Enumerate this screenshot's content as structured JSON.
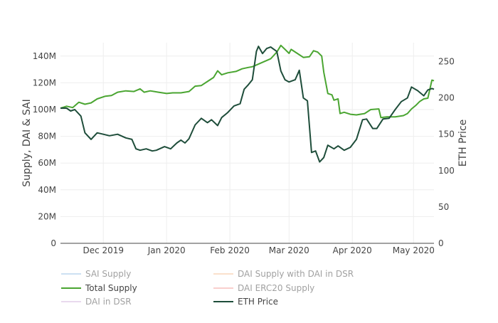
{
  "chart_data": {
    "type": "line",
    "x_axis": {
      "ticks": [
        "Dec 2019",
        "Jan 2020",
        "Feb 2020",
        "Mar 2020",
        "Apr 2020",
        "May 2020"
      ],
      "tick_dates": [
        "2019-12-01",
        "2020-01-01",
        "2020-02-01",
        "2020-03-01",
        "2020-04-01",
        "2020-05-01"
      ],
      "range": [
        "2019-11-10",
        "2020-05-11"
      ]
    },
    "y_axis_left": {
      "label": "Supply, DAI & SAI",
      "ticks": [
        "0",
        "20M",
        "40M",
        "60M",
        "80M",
        "100M",
        "120M",
        "140M"
      ],
      "tick_values": [
        0,
        20000000,
        40000000,
        60000000,
        80000000,
        100000000,
        120000000,
        140000000
      ],
      "range": [
        0,
        150000000
      ]
    },
    "y_axis_right": {
      "label": "ETH Price",
      "ticks": [
        "0",
        "50",
        "100",
        "150",
        "200",
        "250"
      ],
      "tick_values": [
        0,
        50,
        100,
        150,
        200,
        250
      ],
      "range": [
        0,
        276
      ]
    },
    "grid": true,
    "legend": {
      "placement": "bottom",
      "entries": [
        {
          "name": "SAI Supply",
          "color": "#9dc3e6",
          "visible": false
        },
        {
          "name": "DAI Supply with DAI in DSR",
          "color": "#f6c49a",
          "visible": false
        },
        {
          "name": "Total Supply",
          "color": "#4aa531",
          "visible": true
        },
        {
          "name": "DAI ERC20 Supply",
          "color": "#f4a09c",
          "visible": false
        },
        {
          "name": "DAI in DSR",
          "color": "#d4b5de",
          "visible": false
        },
        {
          "name": "ETH Price",
          "color": "#1e4d3a",
          "visible": true
        }
      ]
    },
    "series": [
      {
        "name": "Total Supply",
        "axis": "left",
        "color": "#4aa531",
        "points": [
          [
            "2019-11-10",
            101000000
          ],
          [
            "2019-11-13",
            102500000
          ],
          [
            "2019-11-16",
            101500000
          ],
          [
            "2019-11-19",
            105500000
          ],
          [
            "2019-11-22",
            104000000
          ],
          [
            "2019-11-25",
            105000000
          ],
          [
            "2019-11-28",
            108000000
          ],
          [
            "2019-12-02",
            110000000
          ],
          [
            "2019-12-05",
            110500000
          ],
          [
            "2019-12-08",
            113000000
          ],
          [
            "2019-12-12",
            114000000
          ],
          [
            "2019-12-16",
            113500000
          ],
          [
            "2019-12-19",
            115500000
          ],
          [
            "2019-12-21",
            113000000
          ],
          [
            "2019-12-24",
            114000000
          ],
          [
            "2019-12-28",
            113000000
          ],
          [
            "2020-01-01",
            112000000
          ],
          [
            "2020-01-04",
            112500000
          ],
          [
            "2020-01-08",
            112500000
          ],
          [
            "2020-01-12",
            113500000
          ],
          [
            "2020-01-15",
            117500000
          ],
          [
            "2020-01-18",
            118000000
          ],
          [
            "2020-01-21",
            121000000
          ],
          [
            "2020-01-24",
            124000000
          ],
          [
            "2020-01-26",
            129000000
          ],
          [
            "2020-01-28",
            126000000
          ],
          [
            "2020-01-31",
            127500000
          ],
          [
            "2020-02-04",
            128500000
          ],
          [
            "2020-02-07",
            130500000
          ],
          [
            "2020-02-10",
            131500000
          ],
          [
            "2020-02-12",
            132000000
          ],
          [
            "2020-02-15",
            134000000
          ],
          [
            "2020-02-18",
            136000000
          ],
          [
            "2020-02-21",
            138000000
          ],
          [
            "2020-02-24",
            143000000
          ],
          [
            "2020-02-26",
            148000000
          ],
          [
            "2020-02-28",
            145000000
          ],
          [
            "2020-03-01",
            142000000
          ],
          [
            "2020-03-02",
            145000000
          ],
          [
            "2020-03-05",
            142000000
          ],
          [
            "2020-03-08",
            139000000
          ],
          [
            "2020-03-11",
            139500000
          ],
          [
            "2020-03-13",
            144000000
          ],
          [
            "2020-03-15",
            143000000
          ],
          [
            "2020-03-17",
            140000000
          ],
          [
            "2020-03-18",
            128000000
          ],
          [
            "2020-03-20",
            112000000
          ],
          [
            "2020-03-22",
            111000000
          ],
          [
            "2020-03-23",
            107000000
          ],
          [
            "2020-03-25",
            108000000
          ],
          [
            "2020-03-26",
            97000000
          ],
          [
            "2020-03-28",
            98000000
          ],
          [
            "2020-03-31",
            96500000
          ],
          [
            "2020-04-03",
            96000000
          ],
          [
            "2020-04-07",
            97000000
          ],
          [
            "2020-04-10",
            100000000
          ],
          [
            "2020-04-14",
            100500000
          ],
          [
            "2020-04-15",
            94000000
          ],
          [
            "2020-04-18",
            94500000
          ],
          [
            "2020-04-22",
            94500000
          ],
          [
            "2020-04-26",
            95500000
          ],
          [
            "2020-04-28",
            97000000
          ],
          [
            "2020-04-30",
            100500000
          ],
          [
            "2020-05-02",
            103000000
          ],
          [
            "2020-05-04",
            106000000
          ],
          [
            "2020-05-06",
            108000000
          ],
          [
            "2020-05-08",
            108500000
          ],
          [
            "2020-05-10",
            122000000
          ],
          [
            "2020-05-11",
            121500000
          ]
        ]
      },
      {
        "name": "ETH Price",
        "axis": "right",
        "color": "#1e4d3a",
        "points": [
          [
            "2019-11-10",
            186
          ],
          [
            "2019-11-13",
            186
          ],
          [
            "2019-11-15",
            182
          ],
          [
            "2019-11-17",
            184
          ],
          [
            "2019-11-20",
            175
          ],
          [
            "2019-11-22",
            152
          ],
          [
            "2019-11-25",
            143
          ],
          [
            "2019-11-28",
            152
          ],
          [
            "2019-12-01",
            150
          ],
          [
            "2019-12-04",
            148
          ],
          [
            "2019-12-08",
            150
          ],
          [
            "2019-12-12",
            145
          ],
          [
            "2019-12-15",
            143
          ],
          [
            "2019-12-17",
            130
          ],
          [
            "2019-12-19",
            128
          ],
          [
            "2019-12-22",
            130
          ],
          [
            "2019-12-25",
            127
          ],
          [
            "2019-12-27",
            128
          ],
          [
            "2019-12-31",
            133
          ],
          [
            "2020-01-03",
            130
          ],
          [
            "2020-01-06",
            138
          ],
          [
            "2020-01-08",
            142
          ],
          [
            "2020-01-10",
            138
          ],
          [
            "2020-01-12",
            144
          ],
          [
            "2020-01-15",
            163
          ],
          [
            "2020-01-18",
            172
          ],
          [
            "2020-01-21",
            166
          ],
          [
            "2020-01-23",
            170
          ],
          [
            "2020-01-26",
            162
          ],
          [
            "2020-01-28",
            173
          ],
          [
            "2020-01-31",
            180
          ],
          [
            "2020-02-03",
            189
          ],
          [
            "2020-02-06",
            192
          ],
          [
            "2020-02-08",
            212
          ],
          [
            "2020-02-10",
            218
          ],
          [
            "2020-02-12",
            225
          ],
          [
            "2020-02-14",
            264
          ],
          [
            "2020-02-15",
            271
          ],
          [
            "2020-02-17",
            261
          ],
          [
            "2020-02-19",
            268
          ],
          [
            "2020-02-21",
            270
          ],
          [
            "2020-02-24",
            264
          ],
          [
            "2020-02-26",
            237
          ],
          [
            "2020-02-28",
            225
          ],
          [
            "2020-03-01",
            222
          ],
          [
            "2020-03-04",
            225
          ],
          [
            "2020-03-06",
            238
          ],
          [
            "2020-03-08",
            200
          ],
          [
            "2020-03-10",
            196
          ],
          [
            "2020-03-12",
            125
          ],
          [
            "2020-03-14",
            127
          ],
          [
            "2020-03-16",
            112
          ],
          [
            "2020-03-18",
            118
          ],
          [
            "2020-03-20",
            135
          ],
          [
            "2020-03-23",
            130
          ],
          [
            "2020-03-25",
            134
          ],
          [
            "2020-03-28",
            128
          ],
          [
            "2020-03-31",
            132
          ],
          [
            "2020-04-03",
            143
          ],
          [
            "2020-04-06",
            170
          ],
          [
            "2020-04-08",
            171
          ],
          [
            "2020-04-11",
            158
          ],
          [
            "2020-04-13",
            158
          ],
          [
            "2020-04-16",
            171
          ],
          [
            "2020-04-19",
            172
          ],
          [
            "2020-04-22",
            184
          ],
          [
            "2020-04-25",
            195
          ],
          [
            "2020-04-28",
            200
          ],
          [
            "2020-04-30",
            215
          ],
          [
            "2020-05-03",
            210
          ],
          [
            "2020-05-06",
            203
          ],
          [
            "2020-05-08",
            211
          ],
          [
            "2020-05-10",
            213
          ],
          [
            "2020-05-11",
            212
          ]
        ]
      }
    ]
  }
}
